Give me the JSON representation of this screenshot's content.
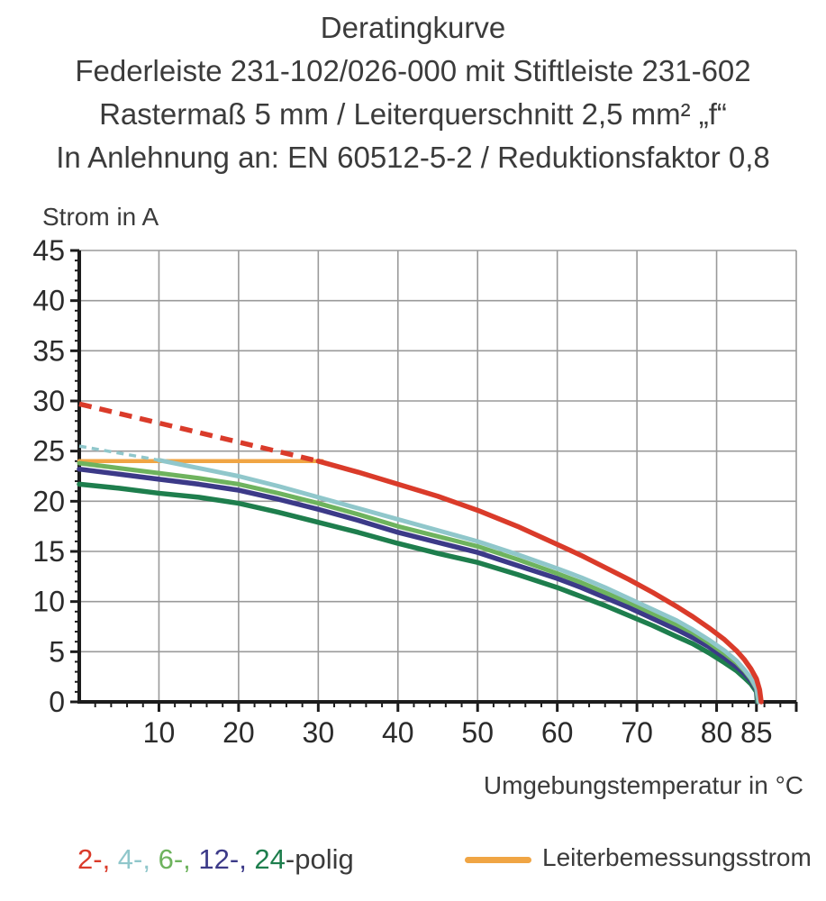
{
  "title": {
    "line1": "Deratingkurve",
    "line2": "Federleiste 231-102/026-000 mit Stiftleiste 231-602",
    "line3": "Rastermaß 5 mm / Leiterquerschnitt 2,5 mm² „f“",
    "line4": "In Anlehnung an: EN 60512-5-2 / Reduktionsfaktor 0,8"
  },
  "colors": {
    "grid": "#9a9a9a",
    "axis": "#1c1c1c",
    "tick_label": "#2b2b2b",
    "text": "#3b3b3b",
    "pole2": "#da3b2a",
    "pole4": "#90c7cb",
    "pole6": "#6eb35e",
    "pole12": "#3c3a88",
    "pole24": "#1e7e4d",
    "rated": "#f0a544"
  },
  "chart_data": {
    "type": "line",
    "title": "Deratingkurve",
    "xlabel": "Umgebungstemperatur in °C",
    "ylabel": "Strom in A",
    "xlim": [
      0,
      90
    ],
    "ylim": [
      0,
      45
    ],
    "grid": true,
    "x_gridline_step": 10,
    "y_gridline_step": 5,
    "x_labeled_ticks": [
      10,
      20,
      30,
      40,
      50,
      60,
      70,
      80,
      85
    ],
    "x_unlabeled_major_ticks": [
      90
    ],
    "y_labeled_ticks": [
      0,
      5,
      10,
      15,
      20,
      25,
      30,
      35,
      40,
      45
    ],
    "x_minor_step": 2,
    "y_minor_step": 1,
    "reference_line": {
      "name": "Leiterbemessungsstrom",
      "value_a": 24,
      "color_key": "rated",
      "points": [
        [
          0,
          24
        ],
        [
          30.5,
          24
        ]
      ]
    },
    "series": [
      {
        "name": "24-polig",
        "color_key": "pole24",
        "width": 5.5,
        "dashed": [],
        "solid": [
          [
            0,
            21.7
          ],
          [
            5,
            21.3
          ],
          [
            10,
            20.8
          ],
          [
            15,
            20.4
          ],
          [
            20,
            19.8
          ],
          [
            25,
            18.9
          ],
          [
            30,
            17.9
          ],
          [
            35,
            16.9
          ],
          [
            40,
            15.8
          ],
          [
            45,
            14.8
          ],
          [
            50,
            13.9
          ],
          [
            55,
            12.7
          ],
          [
            60,
            11.4
          ],
          [
            63,
            10.5
          ],
          [
            66,
            9.6
          ],
          [
            69,
            8.6
          ],
          [
            72,
            7.6
          ],
          [
            75,
            6.5
          ],
          [
            77,
            5.8
          ],
          [
            79,
            4.9
          ],
          [
            81,
            3.9
          ],
          [
            82.5,
            3.1
          ],
          [
            83.5,
            2.4
          ],
          [
            84.3,
            1.8
          ],
          [
            85,
            1.0
          ],
          [
            85.1,
            0
          ]
        ]
      },
      {
        "name": "12-polig",
        "color_key": "pole12",
        "width": 5.5,
        "dashed": [],
        "solid": [
          [
            0,
            23.2
          ],
          [
            5,
            22.7
          ],
          [
            10,
            22.2
          ],
          [
            15,
            21.7
          ],
          [
            20,
            21.1
          ],
          [
            25,
            20.2
          ],
          [
            30,
            19.2
          ],
          [
            35,
            18.1
          ],
          [
            40,
            16.9
          ],
          [
            45,
            15.9
          ],
          [
            50,
            14.9
          ],
          [
            55,
            13.6
          ],
          [
            60,
            12.3
          ],
          [
            63,
            11.4
          ],
          [
            66,
            10.4
          ],
          [
            69,
            9.4
          ],
          [
            72,
            8.3
          ],
          [
            75,
            7.2
          ],
          [
            77,
            6.4
          ],
          [
            79,
            5.5
          ],
          [
            81,
            4.4
          ],
          [
            82.5,
            3.5
          ],
          [
            83.5,
            2.8
          ],
          [
            84.3,
            2.1
          ],
          [
            85,
            1.2
          ],
          [
            85.15,
            0
          ]
        ]
      },
      {
        "name": "6-polig",
        "color_key": "pole6",
        "width": 5,
        "dashed": [],
        "solid": [
          [
            0,
            23.8
          ],
          [
            5,
            23.3
          ],
          [
            10,
            22.8
          ],
          [
            15,
            22.3
          ],
          [
            20,
            21.7
          ],
          [
            25,
            20.8
          ],
          [
            30,
            19.8
          ],
          [
            35,
            18.7
          ],
          [
            40,
            17.5
          ],
          [
            45,
            16.5
          ],
          [
            50,
            15.5
          ],
          [
            55,
            14.2
          ],
          [
            60,
            12.8
          ],
          [
            63,
            11.9
          ],
          [
            66,
            10.9
          ],
          [
            69,
            9.9
          ],
          [
            72,
            8.8
          ],
          [
            75,
            7.7
          ],
          [
            77,
            6.9
          ],
          [
            79,
            5.9
          ],
          [
            81,
            4.8
          ],
          [
            82.5,
            3.9
          ],
          [
            83.5,
            3.1
          ],
          [
            84.3,
            2.3
          ],
          [
            85,
            1.3
          ],
          [
            85.2,
            0
          ]
        ]
      },
      {
        "name": "4-polig",
        "color_key": "pole4",
        "width": 5,
        "dash_width": 3.5,
        "dash_pattern": "8,6",
        "dashed": [
          [
            0,
            25.5
          ],
          [
            10,
            24.1
          ]
        ],
        "solid": [
          [
            10,
            24.1
          ],
          [
            15,
            23.3
          ],
          [
            20,
            22.5
          ],
          [
            25,
            21.5
          ],
          [
            30,
            20.4
          ],
          [
            35,
            19.3
          ],
          [
            40,
            18.2
          ],
          [
            45,
            17.1
          ],
          [
            50,
            16.0
          ],
          [
            55,
            14.7
          ],
          [
            60,
            13.3
          ],
          [
            63,
            12.4
          ],
          [
            66,
            11.4
          ],
          [
            69,
            10.3
          ],
          [
            72,
            9.2
          ],
          [
            75,
            8.1
          ],
          [
            77,
            7.2
          ],
          [
            79,
            6.2
          ],
          [
            81,
            5.1
          ],
          [
            82.5,
            4.1
          ],
          [
            83.5,
            3.2
          ],
          [
            84.3,
            2.4
          ],
          [
            85,
            1.4
          ],
          [
            85.3,
            0
          ]
        ]
      },
      {
        "name": "2-polig",
        "color_key": "pole2",
        "width": 5.5,
        "dash_width": 5.5,
        "dash_pattern": "14,9",
        "dashed": [
          [
            0,
            29.7
          ],
          [
            30,
            24
          ]
        ],
        "solid": [
          [
            30,
            24
          ],
          [
            35,
            22.9
          ],
          [
            40,
            21.7
          ],
          [
            45,
            20.5
          ],
          [
            50,
            19.1
          ],
          [
            55,
            17.5
          ],
          [
            60,
            15.7
          ],
          [
            63,
            14.6
          ],
          [
            66,
            13.4
          ],
          [
            69,
            12.2
          ],
          [
            72,
            10.9
          ],
          [
            75,
            9.5
          ],
          [
            77,
            8.5
          ],
          [
            79,
            7.4
          ],
          [
            81,
            6.2
          ],
          [
            82.5,
            5.1
          ],
          [
            83.5,
            4.2
          ],
          [
            84.3,
            3.3
          ],
          [
            85,
            2.3
          ],
          [
            85.4,
            1.2
          ],
          [
            85.6,
            0
          ]
        ]
      }
    ],
    "legend_position": "bottom"
  },
  "axis_labels": {
    "y": "Strom in A",
    "x": "Umgebungstemperatur in °C"
  },
  "legend_poles": {
    "items": [
      {
        "text": "2-, ",
        "color_key": "pole2"
      },
      {
        "text": "4-, ",
        "color_key": "pole4"
      },
      {
        "text": "6-, ",
        "color_key": "pole6"
      },
      {
        "text": "12-, ",
        "color_key": "pole12"
      },
      {
        "text": "24",
        "color_key": "pole24"
      },
      {
        "text": "-polig",
        "color_key": "text"
      }
    ]
  },
  "legend_rated": {
    "label": "Leiterbemessungsstrom",
    "color_key": "rated"
  }
}
